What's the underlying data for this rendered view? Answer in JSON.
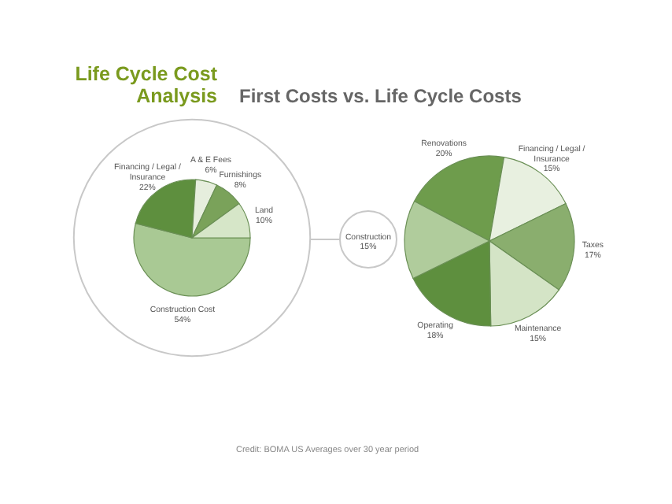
{
  "chart_data": [
    {
      "type": "pie",
      "title": "Life Cycle Cost Analysis",
      "subtitle": "First Costs vs. Life Cycle Costs",
      "categories": [
        "Construction Cost",
        "Financing / Legal / Insurance",
        "A & E Fees",
        "Furnishings",
        "Land"
      ],
      "values": [
        54,
        22,
        6,
        8,
        10
      ],
      "colors": [
        "#a9c994",
        "#5e8f3e",
        "#e6eedd",
        "#7aa25a",
        "#d6e6c8"
      ],
      "value_labels": [
        "54%",
        "22%",
        "6%",
        "8%",
        "10%"
      ]
    },
    {
      "type": "pie",
      "categories": [
        "Renovations",
        "Financing / Legal / Insurance",
        "Taxes",
        "Maintenance",
        "Operating",
        "Construction"
      ],
      "values": [
        20,
        15,
        17,
        15,
        18,
        15
      ],
      "colors": [
        "#6e9c4c",
        "#e8f0e0",
        "#8aae6e",
        "#d4e4c6",
        "#5e8f3e",
        "#b0cc9c"
      ],
      "value_labels": [
        "20%",
        "15%",
        "17%",
        "15%",
        "18%",
        "15%"
      ],
      "annotations": [
        "Credit: BOMA US Averages over 30 year period"
      ]
    }
  ]
}
